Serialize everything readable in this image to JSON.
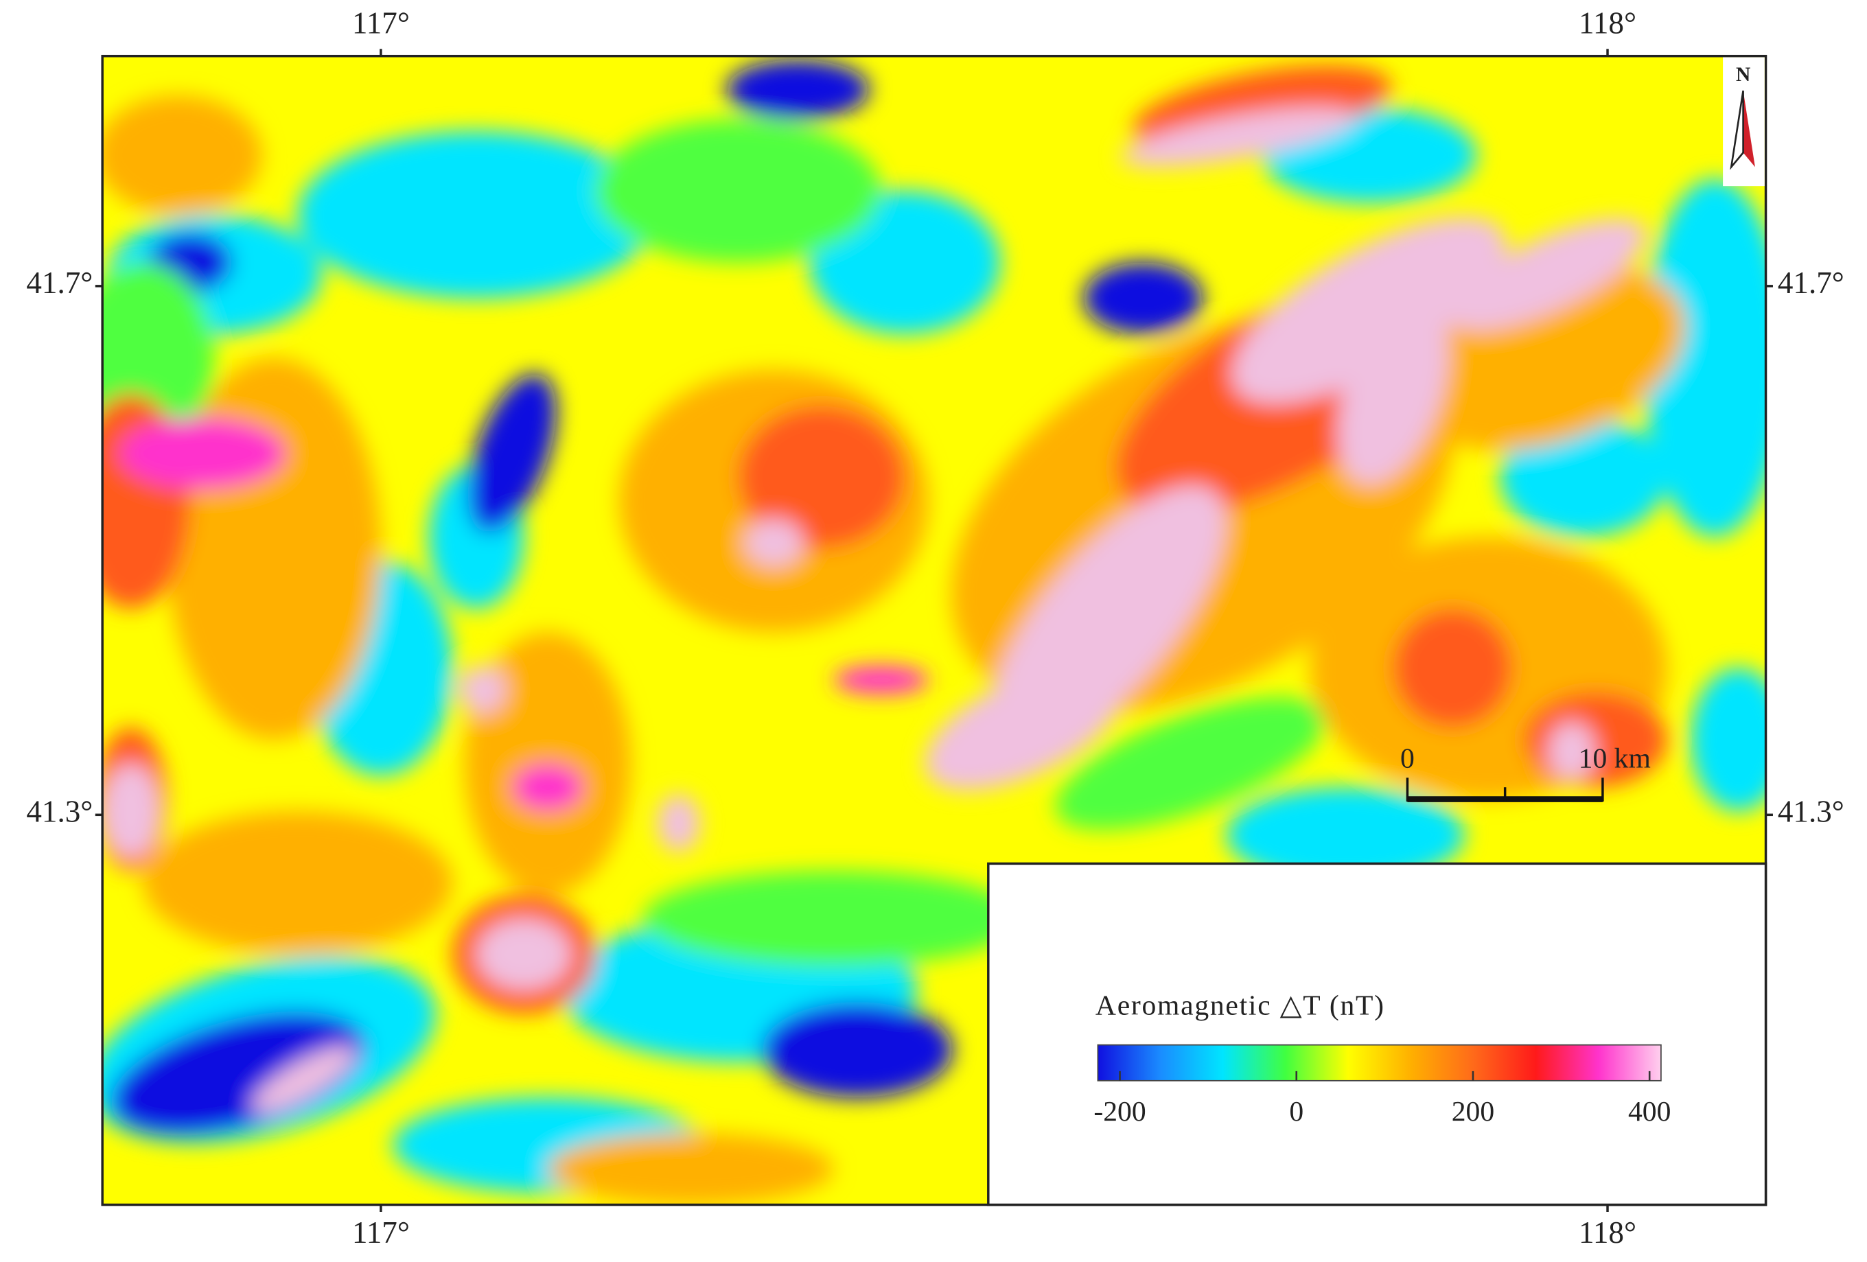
{
  "map": {
    "longitude": {
      "range": [
        116.773,
        118.129
      ],
      "ticks": [
        {
          "value": 117,
          "label": "117°"
        },
        {
          "value": 118,
          "label": "118°"
        }
      ]
    },
    "latitude": {
      "range": [
        41.005,
        41.874
      ],
      "ticks": [
        {
          "value": 41.7,
          "label": "41.7°"
        },
        {
          "value": 41.3,
          "label": "41.3°"
        }
      ]
    },
    "north_label": "N",
    "scale_bar": {
      "labels": [
        "0",
        "10 km"
      ]
    }
  },
  "legend": {
    "title": "Aeromagnetic △T (nT)",
    "colorbar": {
      "range": [
        -225,
        413
      ],
      "ticks": [
        -200,
        0,
        200,
        400
      ],
      "colors": [
        "#1010e0",
        "#1a8cff",
        "#00e5ff",
        "#40ff40",
        "#ffff00",
        "#ffb000",
        "#ff6a1a",
        "#ff1a1a",
        "#ff33cc",
        "#ffd0ee"
      ]
    }
  }
}
